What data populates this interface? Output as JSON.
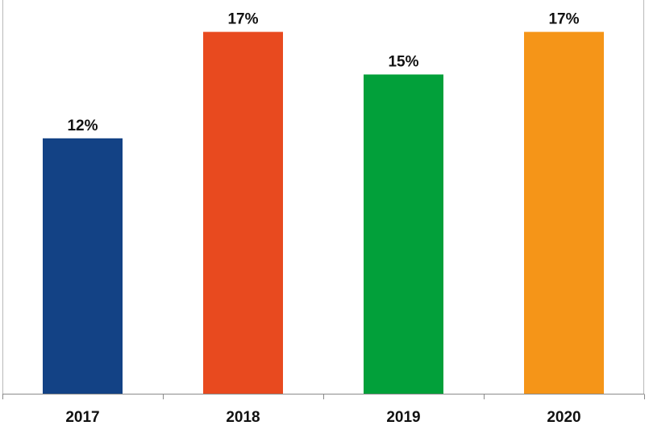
{
  "chart_data": {
    "type": "bar",
    "categories": [
      "2017",
      "2018",
      "2019",
      "2020"
    ],
    "values": [
      12,
      17,
      15,
      17
    ],
    "value_labels": [
      "12%",
      "17%",
      "15%",
      "17%"
    ],
    "colors": [
      "#134285",
      "#e84a1f",
      "#02a03a",
      "#f59518"
    ],
    "ylim": [
      0,
      18.5
    ],
    "grid": false,
    "legend": "none",
    "frame_color": "#b9b9b9",
    "axis_color": "#8a8a8a"
  }
}
